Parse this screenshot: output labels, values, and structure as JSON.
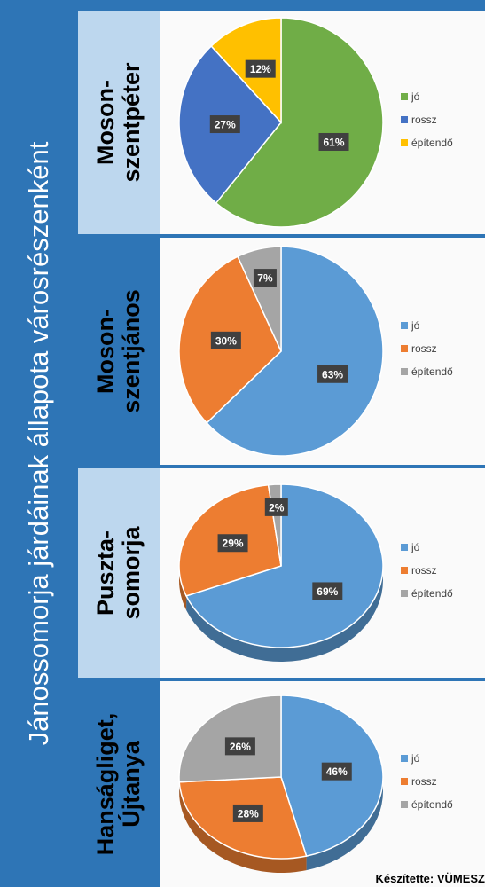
{
  "title": "Jánossomorja járdáinak állapota városrészenként",
  "credit": "Készítette: VÜMESZ",
  "chart_data": [
    {
      "type": "pie",
      "district": [
        "Moson-",
        "szentpéter"
      ],
      "slices": [
        {
          "label": "jó",
          "value": 61,
          "color": "#70ad47"
        },
        {
          "label": "rossz",
          "value": 27,
          "color": "#4472c4"
        },
        {
          "label": "építendő",
          "value": 12,
          "color": "#ffc000"
        }
      ],
      "data_labels": [
        "61%",
        "27%",
        "12%"
      ],
      "legend": [
        "jó",
        "rossz",
        "építendő"
      ],
      "legend_position": "right",
      "bg": "#bdd7ee"
    },
    {
      "type": "pie",
      "district": [
        "Moson-",
        "szentjános"
      ],
      "slices": [
        {
          "label": "jó",
          "value": 63,
          "color": "#5b9bd5"
        },
        {
          "label": "rossz",
          "value": 30,
          "color": "#ed7d31"
        },
        {
          "label": "építendő",
          "value": 7,
          "color": "#a5a5a5"
        }
      ],
      "data_labels": [
        "63%",
        "30%",
        "7%"
      ],
      "legend": [
        "jó",
        "rossz",
        "építendő"
      ],
      "legend_position": "right",
      "bg": "#2e75b6"
    },
    {
      "type": "pie",
      "district": [
        "Puszta-",
        "somorja"
      ],
      "slices": [
        {
          "label": "jó",
          "value": 69,
          "color": "#5b9bd5"
        },
        {
          "label": "rossz",
          "value": 29,
          "color": "#ed7d31"
        },
        {
          "label": "építendő",
          "value": 2,
          "color": "#a5a5a5"
        }
      ],
      "data_labels": [
        "69%",
        "29%",
        "2%"
      ],
      "legend": [
        "jó",
        "rossz",
        "építendő"
      ],
      "legend_position": "right",
      "bg": "#bdd7ee"
    },
    {
      "type": "pie",
      "district": [
        "Hanságliget,",
        "Újtanya"
      ],
      "slices": [
        {
          "label": "jó",
          "value": 46,
          "color": "#5b9bd5"
        },
        {
          "label": "rossz",
          "value": 28,
          "color": "#ed7d31"
        },
        {
          "label": "építendő",
          "value": 26,
          "color": "#a5a5a5"
        }
      ],
      "data_labels": [
        "46%",
        "28%",
        "26%"
      ],
      "legend": [
        "jó",
        "rossz",
        "építendő"
      ],
      "legend_position": "right",
      "bg": "#2e75b6"
    }
  ]
}
